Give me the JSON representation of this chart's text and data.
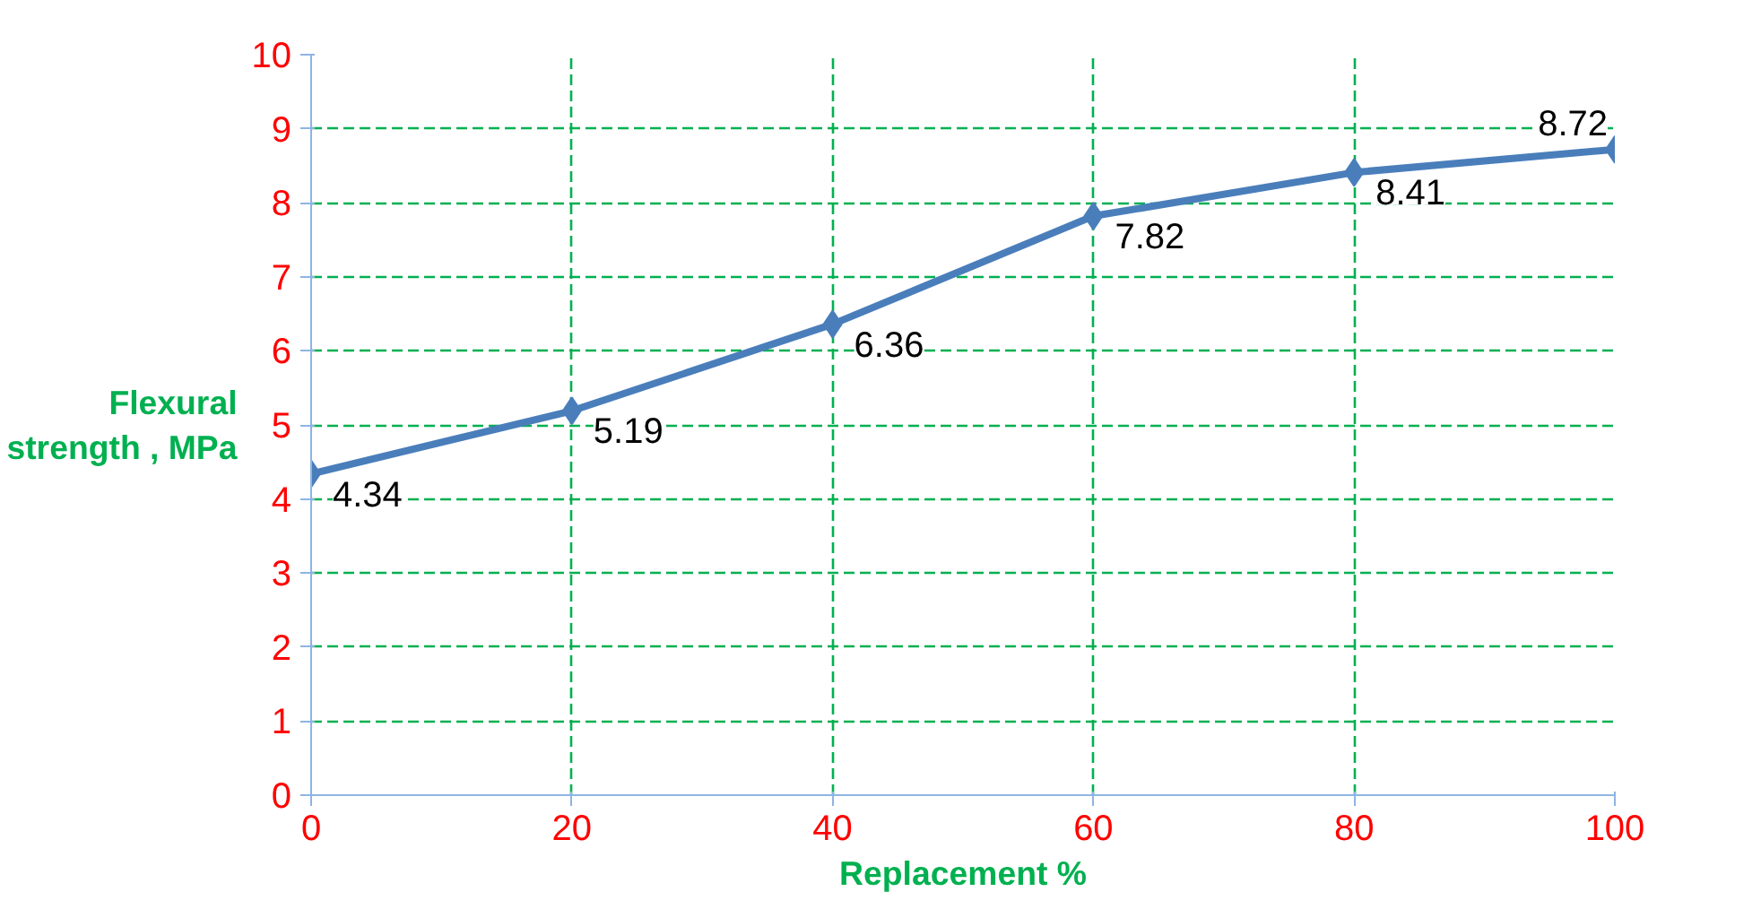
{
  "chart_data": {
    "type": "line",
    "xlabel": "Replacement %",
    "ylabel": "Flexural\nstrength , MPa",
    "x": [
      0,
      20,
      40,
      60,
      80,
      100
    ],
    "series": [
      {
        "color": "#4a7ebb",
        "values": [
          4.34,
          5.19,
          6.36,
          7.82,
          8.41,
          8.72
        ]
      }
    ],
    "xlim": [
      0,
      100
    ],
    "xticks": [
      0,
      20,
      40,
      60,
      80,
      100
    ],
    "ylim": [
      0,
      10
    ],
    "yticks": [
      0,
      1,
      2,
      3,
      4,
      5,
      6,
      7,
      8,
      9,
      10
    ],
    "grid": true,
    "marker": "diamond",
    "line_style": "solid",
    "data_labels": true
  }
}
